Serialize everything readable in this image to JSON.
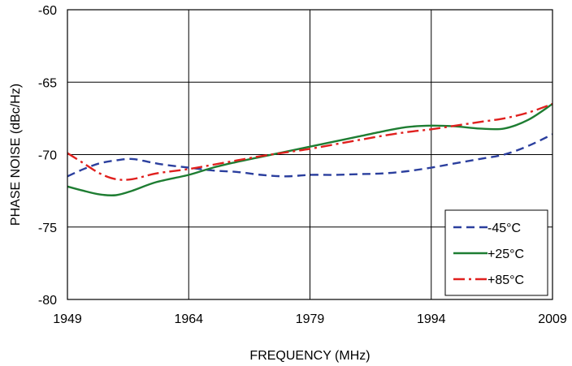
{
  "chart_data": {
    "type": "line",
    "title": "",
    "xlabel": "FREQUENCY (MHz)",
    "ylabel": "PHASE NOISE  (dBc/Hz)",
    "xlim": [
      1949,
      2009
    ],
    "ylim": [
      -80,
      -60
    ],
    "xticks": [
      1949,
      1964,
      1979,
      1994,
      2009
    ],
    "yticks": [
      -60,
      -65,
      -70,
      -75,
      -80
    ],
    "grid": true,
    "legend_position": "bottom-right",
    "series": [
      {
        "name": "-45°C",
        "color": "#2b3f9e",
        "dash": "dash",
        "points": [
          [
            1949,
            -71.5
          ],
          [
            1951,
            -71.0
          ],
          [
            1953,
            -70.6
          ],
          [
            1955,
            -70.4
          ],
          [
            1957,
            -70.3
          ],
          [
            1959,
            -70.5
          ],
          [
            1961,
            -70.7
          ],
          [
            1964,
            -70.9
          ],
          [
            1967,
            -71.1
          ],
          [
            1970,
            -71.2
          ],
          [
            1973,
            -71.4
          ],
          [
            1976,
            -71.5
          ],
          [
            1979,
            -71.4
          ],
          [
            1982,
            -71.4
          ],
          [
            1985,
            -71.35
          ],
          [
            1988,
            -71.3
          ],
          [
            1991,
            -71.15
          ],
          [
            1994,
            -70.9
          ],
          [
            1997,
            -70.6
          ],
          [
            2000,
            -70.3
          ],
          [
            2003,
            -70.0
          ],
          [
            2006,
            -69.4
          ],
          [
            2009,
            -68.6
          ]
        ]
      },
      {
        "name": "+25°C",
        "color": "#1e7d32",
        "dash": "solid",
        "points": [
          [
            1949,
            -72.2
          ],
          [
            1951,
            -72.5
          ],
          [
            1953,
            -72.75
          ],
          [
            1955,
            -72.8
          ],
          [
            1957,
            -72.5
          ],
          [
            1960,
            -71.9
          ],
          [
            1964,
            -71.4
          ],
          [
            1967,
            -70.9
          ],
          [
            1970,
            -70.5
          ],
          [
            1973,
            -70.15
          ],
          [
            1976,
            -69.8
          ],
          [
            1979,
            -69.45
          ],
          [
            1982,
            -69.1
          ],
          [
            1985,
            -68.75
          ],
          [
            1988,
            -68.4
          ],
          [
            1991,
            -68.1
          ],
          [
            1994,
            -68.0
          ],
          [
            1997,
            -68.05
          ],
          [
            2000,
            -68.2
          ],
          [
            2003,
            -68.2
          ],
          [
            2006,
            -67.6
          ],
          [
            2009,
            -66.5
          ]
        ]
      },
      {
        "name": "+85°C",
        "color": "#e0201e",
        "dash": "dashdot",
        "points": [
          [
            1949,
            -69.9
          ],
          [
            1951,
            -70.6
          ],
          [
            1953,
            -71.3
          ],
          [
            1955,
            -71.7
          ],
          [
            1957,
            -71.7
          ],
          [
            1960,
            -71.3
          ],
          [
            1964,
            -71.0
          ],
          [
            1967,
            -70.7
          ],
          [
            1970,
            -70.4
          ],
          [
            1973,
            -70.1
          ],
          [
            1976,
            -69.85
          ],
          [
            1979,
            -69.6
          ],
          [
            1982,
            -69.3
          ],
          [
            1985,
            -69.0
          ],
          [
            1988,
            -68.7
          ],
          [
            1991,
            -68.45
          ],
          [
            1994,
            -68.25
          ],
          [
            1997,
            -68.0
          ],
          [
            2000,
            -67.75
          ],
          [
            2003,
            -67.5
          ],
          [
            2006,
            -67.1
          ],
          [
            2009,
            -66.5
          ]
        ]
      }
    ]
  }
}
